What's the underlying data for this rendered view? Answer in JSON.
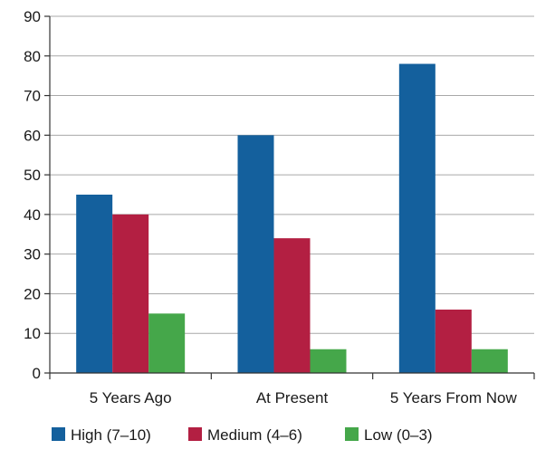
{
  "chart_data": {
    "type": "bar",
    "title": "",
    "xlabel": "",
    "ylabel": "",
    "categories": [
      "5 Years Ago",
      "At Present",
      "5 Years From Now"
    ],
    "series": [
      {
        "name": "High (7–10)",
        "color": "#14609d",
        "values": [
          45,
          60,
          78
        ]
      },
      {
        "name": "Medium (4–6)",
        "color": "#b31f42",
        "values": [
          40,
          34,
          16
        ]
      },
      {
        "name": "Low (0–3)",
        "color": "#45a74a",
        "values": [
          15,
          6,
          6
        ]
      }
    ],
    "ylim": [
      0,
      90
    ],
    "yticks": [
      0,
      10,
      20,
      30,
      40,
      50,
      60,
      70,
      80,
      90
    ],
    "grid": true,
    "legend_position": "bottom"
  }
}
